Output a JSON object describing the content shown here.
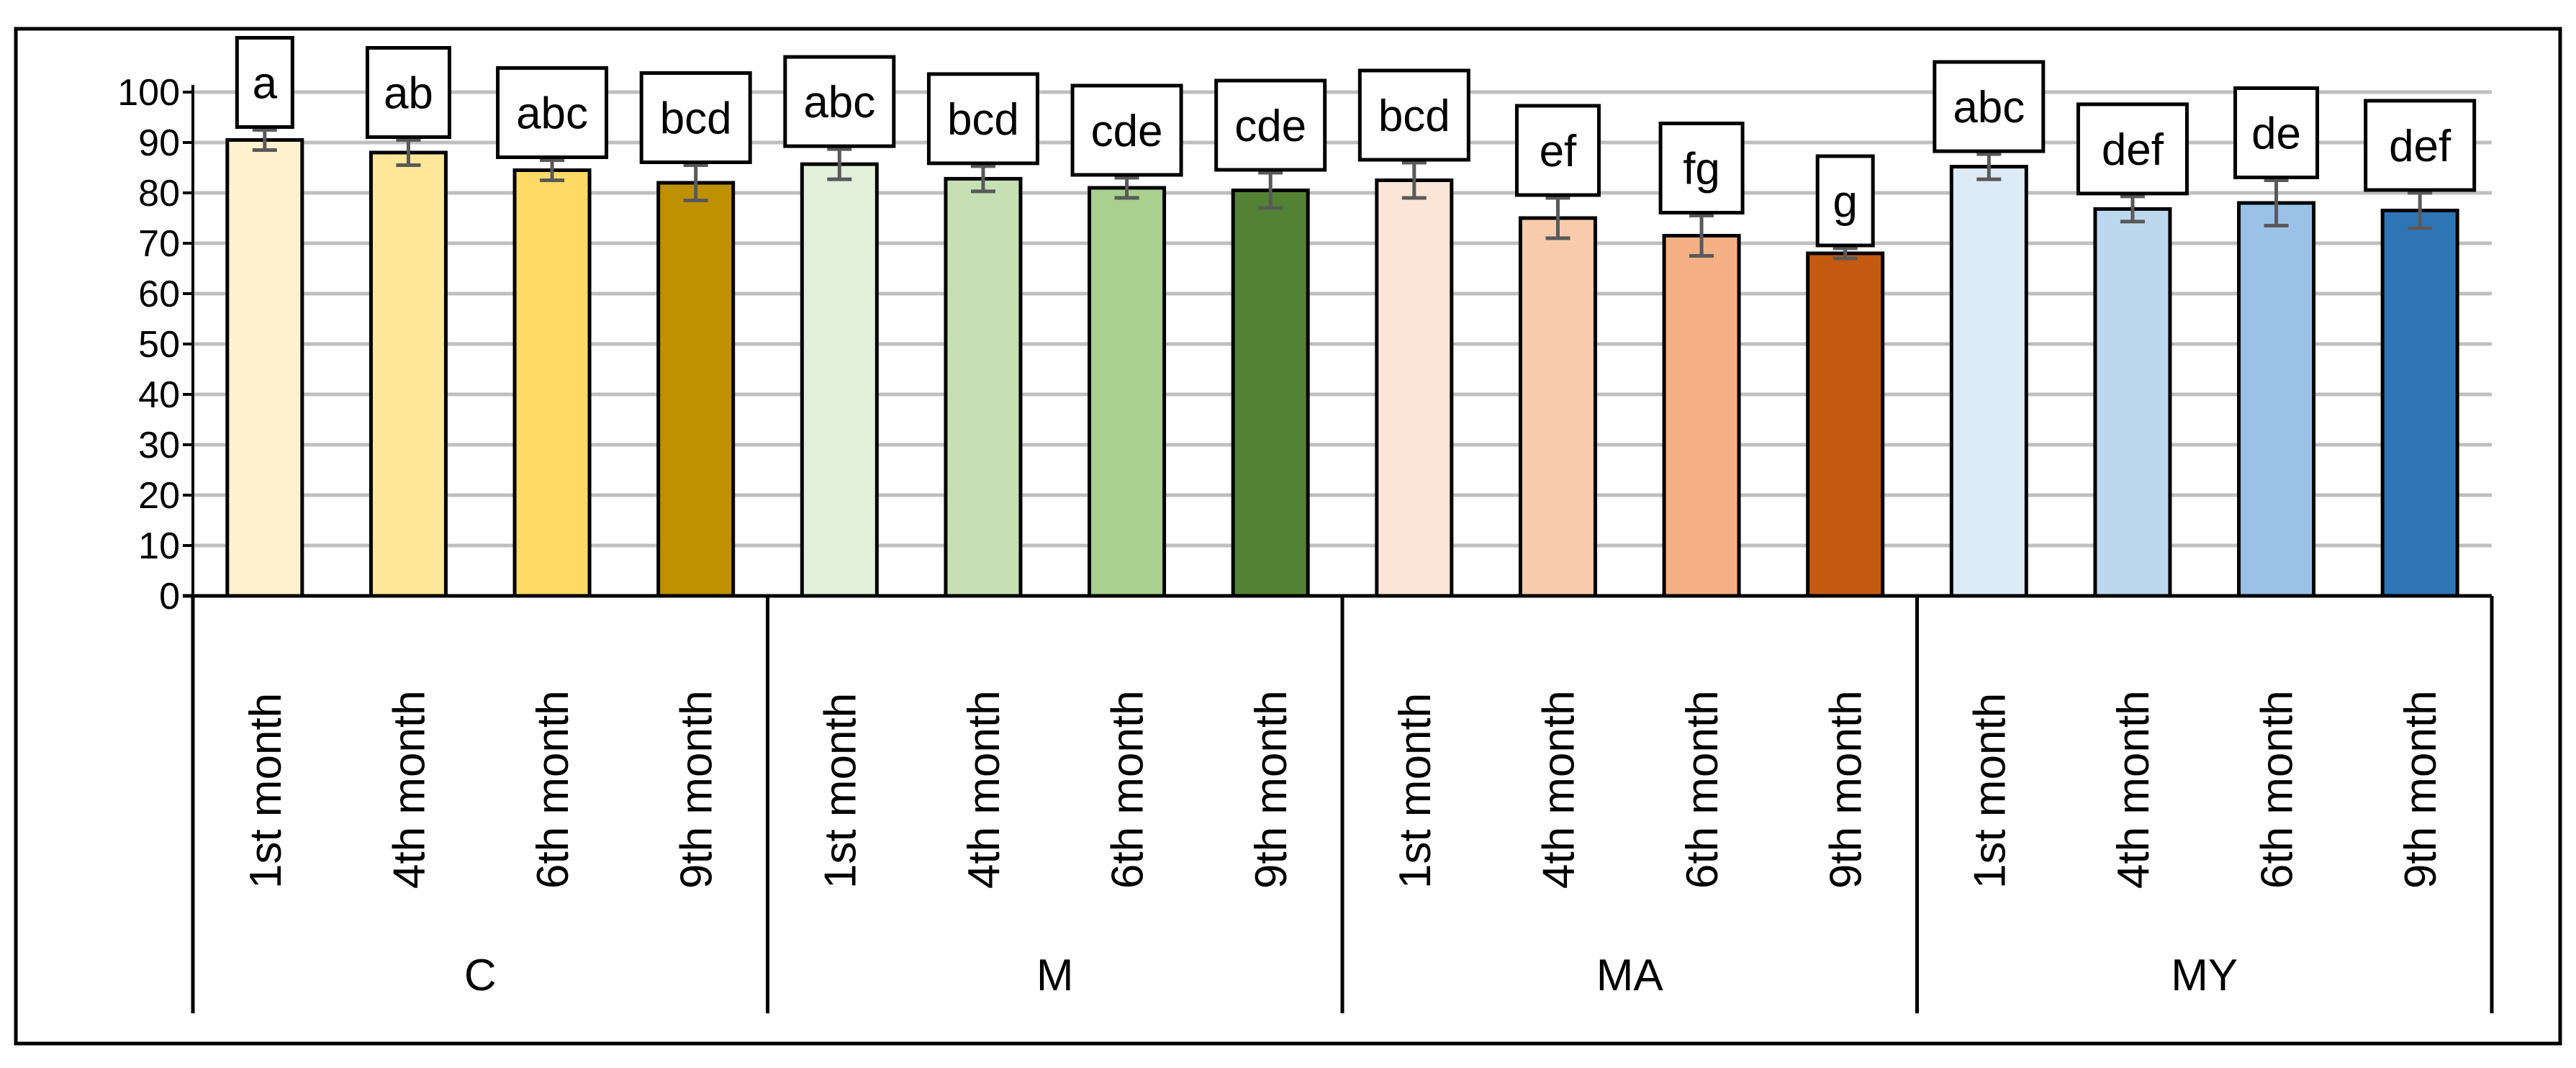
{
  "chart_data": {
    "type": "bar",
    "title": "",
    "xlabel": "",
    "ylabel": "",
    "ylim": [
      0,
      100
    ],
    "yticks": [
      "0",
      "10",
      "20",
      "30",
      "40",
      "50",
      "60",
      "70",
      "80",
      "90",
      "100"
    ],
    "grid": true,
    "legend": "none",
    "groups": [
      {
        "name": "C",
        "bars": [
          {
            "label": "1st month",
            "value": 90.5,
            "error": 2.0,
            "letter": "a",
            "color": "#FFF2CC"
          },
          {
            "label": "4th month",
            "value": 88.0,
            "error": 2.5,
            "letter": "ab",
            "color": "#FFE699"
          },
          {
            "label": "6th month",
            "value": 84.5,
            "error": 2.0,
            "letter": "abc",
            "color": "#FFD966"
          },
          {
            "label": "9th month",
            "value": 82.0,
            "error": 3.5,
            "letter": "bcd",
            "color": "#BF9000"
          }
        ]
      },
      {
        "name": "M",
        "bars": [
          {
            "label": "1st month",
            "value": 85.7,
            "error": 3.0,
            "letter": "abc",
            "color": "#E2EFDA"
          },
          {
            "label": "4th month",
            "value": 82.8,
            "error": 2.5,
            "letter": "bcd",
            "color": "#C6E0B4"
          },
          {
            "label": "6th month",
            "value": 81.0,
            "error": 2.0,
            "letter": "cde",
            "color": "#A9D08E"
          },
          {
            "label": "9th month",
            "value": 80.5,
            "error": 3.5,
            "letter": "cde",
            "color": "#548235"
          }
        ]
      },
      {
        "name": "MA",
        "bars": [
          {
            "label": "1st month",
            "value": 82.5,
            "error": 3.5,
            "letter": "bcd",
            "color": "#FCE4D6"
          },
          {
            "label": "4th month",
            "value": 75.0,
            "error": 4.0,
            "letter": "ef",
            "color": "#F8CBAD"
          },
          {
            "label": "6th month",
            "value": 71.5,
            "error": 4.0,
            "letter": "fg",
            "color": "#F4B084"
          },
          {
            "label": "9th month",
            "value": 68.0,
            "error": 1.0,
            "letter": "g",
            "color": "#C55A11"
          }
        ]
      },
      {
        "name": "MY",
        "bars": [
          {
            "label": "1st month",
            "value": 85.2,
            "error": 2.5,
            "letter": "abc",
            "color": "#DDEBF7"
          },
          {
            "label": "4th month",
            "value": 76.8,
            "error": 2.5,
            "letter": "def",
            "color": "#BDD7EE"
          },
          {
            "label": "6th month",
            "value": 78.0,
            "error": 4.5,
            "letter": "de",
            "color": "#9BC2E6"
          },
          {
            "label": "9th month",
            "value": 76.5,
            "error": 3.5,
            "letter": "def",
            "color": "#2E75B6"
          }
        ]
      }
    ]
  }
}
